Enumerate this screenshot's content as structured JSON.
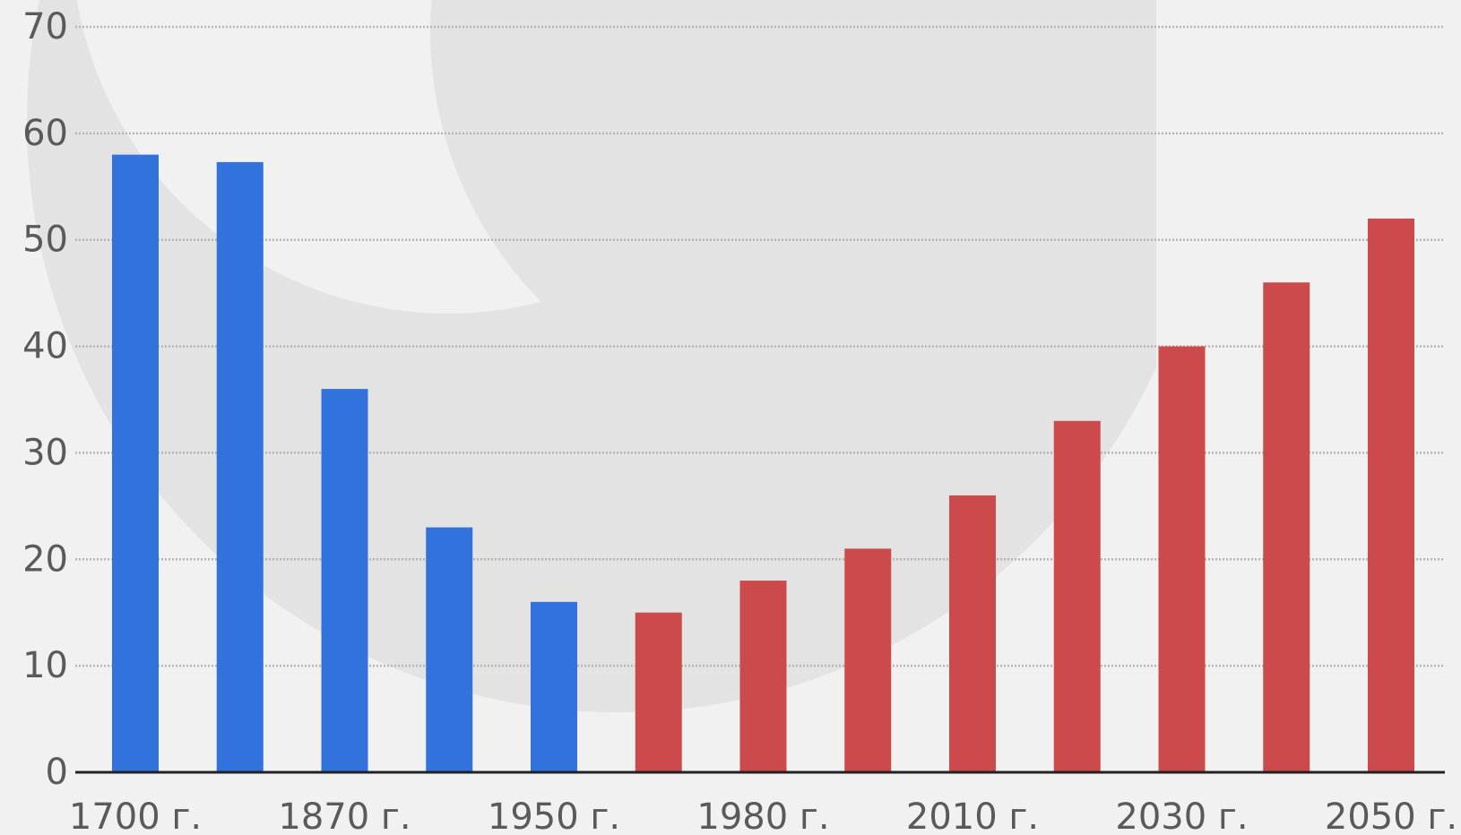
{
  "chart_data": {
    "type": "bar",
    "categories": [
      "1700 г.",
      "",
      "1870 г.",
      "",
      "1950 г.",
      "",
      "1980 г.",
      "",
      "2010 г.",
      "",
      "2030 г.",
      "",
      "2050 г."
    ],
    "values": [
      58,
      57.3,
      36,
      23,
      16,
      15,
      18,
      21,
      26,
      33,
      40,
      46,
      52
    ],
    "bar_colors": [
      "#3272dc",
      "#3272dc",
      "#3272dc",
      "#3272dc",
      "#3272dc",
      "#cc4a4b",
      "#cc4a4b",
      "#cc4a4b",
      "#cc4a4b",
      "#cc4a4b",
      "#cc4a4b",
      "#cc4a4b",
      "#cc4a4b"
    ],
    "yticks": [
      "0",
      "10",
      "20",
      "30",
      "40",
      "50",
      "60",
      "70"
    ],
    "ylim": [
      0,
      70
    ],
    "grid": true,
    "title": "",
    "xlabel": "",
    "ylabel": ""
  },
  "colors": {
    "background": "#f1f1f1",
    "watermark": "#e3e3e3",
    "grid": "#b4b4b4",
    "axis": "#222222",
    "tick_text": "#5a5a5a"
  }
}
